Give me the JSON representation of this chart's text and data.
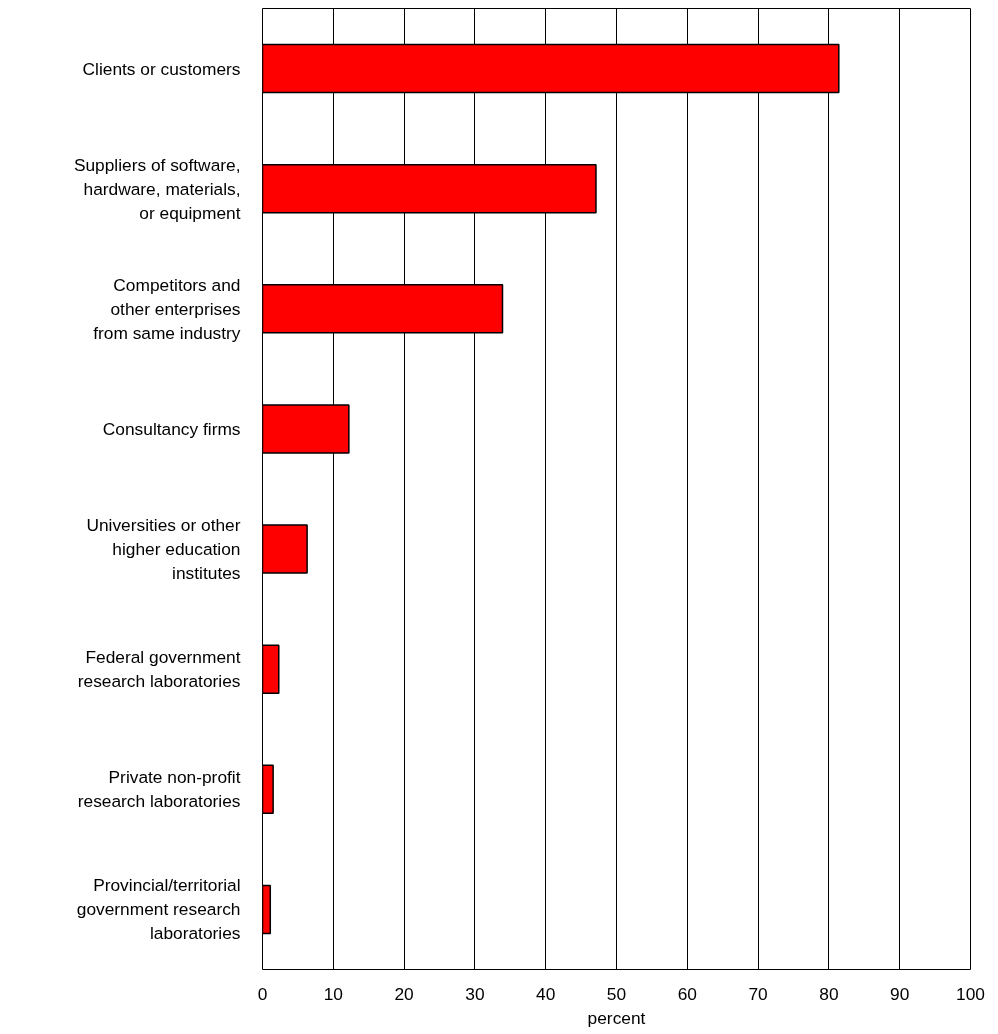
{
  "chart_data": {
    "type": "bar",
    "orientation": "horizontal",
    "xlabel": "percent",
    "categories": [
      "Clients or customers",
      "Suppliers of software,\nhardware, materials,\nor equipment",
      "Competitors and\nother enterprises\nfrom same industry",
      "Consultancy firms",
      "Universities or other\nhigher education\ninstitutes",
      "Federal government\nresearch laboratories",
      "Private non-profit\nresearch laboratories",
      "Provincial/territorial\ngovernment research\nlaboratories"
    ],
    "values": [
      81.4,
      47.1,
      33.9,
      12.2,
      6.3,
      2.3,
      1.5,
      1.1
    ],
    "color": "#ff0000",
    "xlim": [
      0,
      100
    ],
    "xticks": [
      0,
      10,
      20,
      30,
      40,
      50,
      60,
      70,
      80,
      90,
      100
    ],
    "grid": "x"
  }
}
